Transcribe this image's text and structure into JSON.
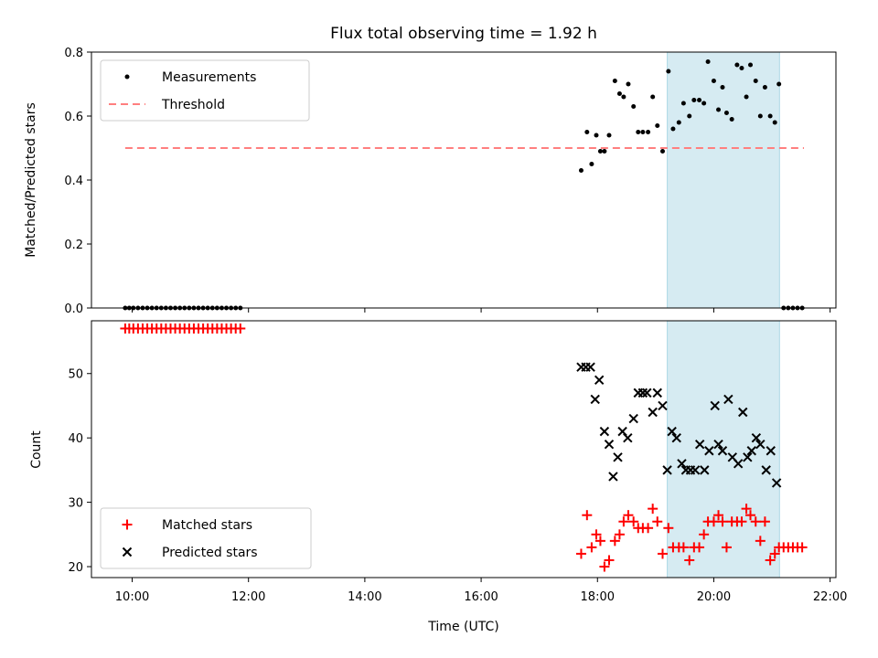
{
  "chart_data": {
    "type": "scatter",
    "title": "Flux total observing time = 1.92 h",
    "x_axis": {
      "label": "Time (UTC)",
      "range_hours": [
        9.3,
        22.1
      ],
      "ticks": [
        "10:00",
        "12:00",
        "14:00",
        "16:00",
        "18:00",
        "20:00",
        "22:00"
      ]
    },
    "shaded_interval": {
      "start_hour": 19.2,
      "end_hour": 21.13,
      "color": "#add8e6"
    },
    "panels": [
      {
        "ylabel": "Matched/Predicted stars",
        "ylim": [
          0,
          0.8
        ],
        "yticks": [
          "0.0",
          "0.2",
          "0.4",
          "0.6",
          "0.8"
        ],
        "legend": [
          "Measurements",
          "Threshold"
        ],
        "legend_location": "upper-left",
        "threshold": {
          "value": 0.5,
          "x_range": [
            9.88,
            21.55
          ],
          "color": "#ff7f7f"
        },
        "series": [
          {
            "name": "Measurements",
            "marker": "dot",
            "color": "#000000",
            "points": [
              [
                9.88,
                0
              ],
              [
                9.95,
                0
              ],
              [
                10.02,
                0
              ],
              [
                10.1,
                0
              ],
              [
                10.18,
                0
              ],
              [
                10.26,
                0
              ],
              [
                10.34,
                0
              ],
              [
                10.42,
                0
              ],
              [
                10.5,
                0
              ],
              [
                10.58,
                0
              ],
              [
                10.66,
                0
              ],
              [
                10.74,
                0
              ],
              [
                10.82,
                0
              ],
              [
                10.9,
                0
              ],
              [
                10.98,
                0
              ],
              [
                11.06,
                0
              ],
              [
                11.14,
                0
              ],
              [
                11.22,
                0
              ],
              [
                11.3,
                0
              ],
              [
                11.38,
                0
              ],
              [
                11.46,
                0
              ],
              [
                11.54,
                0
              ],
              [
                11.62,
                0
              ],
              [
                11.7,
                0
              ],
              [
                11.78,
                0
              ],
              [
                11.86,
                0
              ],
              [
                17.72,
                0.43
              ],
              [
                17.82,
                0.55
              ],
              [
                17.9,
                0.45
              ],
              [
                17.98,
                0.54
              ],
              [
                18.05,
                0.49
              ],
              [
                18.12,
                0.49
              ],
              [
                18.2,
                0.54
              ],
              [
                18.3,
                0.71
              ],
              [
                18.38,
                0.67
              ],
              [
                18.45,
                0.66
              ],
              [
                18.53,
                0.7
              ],
              [
                18.62,
                0.63
              ],
              [
                18.7,
                0.55
              ],
              [
                18.78,
                0.55
              ],
              [
                18.87,
                0.55
              ],
              [
                18.95,
                0.66
              ],
              [
                19.03,
                0.57
              ],
              [
                19.12,
                0.49
              ],
              [
                19.22,
                0.74
              ],
              [
                19.3,
                0.56
              ],
              [
                19.4,
                0.58
              ],
              [
                19.48,
                0.64
              ],
              [
                19.58,
                0.6
              ],
              [
                19.66,
                0.65
              ],
              [
                19.75,
                0.65
              ],
              [
                19.83,
                0.64
              ],
              [
                19.9,
                0.77
              ],
              [
                20.0,
                0.71
              ],
              [
                20.08,
                0.62
              ],
              [
                20.15,
                0.69
              ],
              [
                20.22,
                0.61
              ],
              [
                20.31,
                0.59
              ],
              [
                20.4,
                0.76
              ],
              [
                20.48,
                0.75
              ],
              [
                20.56,
                0.66
              ],
              [
                20.63,
                0.76
              ],
              [
                20.72,
                0.71
              ],
              [
                20.8,
                0.6
              ],
              [
                20.88,
                0.69
              ],
              [
                20.97,
                0.6
              ],
              [
                21.05,
                0.58
              ],
              [
                21.12,
                0.7
              ],
              [
                21.2,
                0
              ],
              [
                21.28,
                0
              ],
              [
                21.36,
                0
              ],
              [
                21.44,
                0
              ],
              [
                21.52,
                0
              ]
            ]
          }
        ]
      },
      {
        "ylabel": "Count",
        "ylim": [
          18.3,
          58.2
        ],
        "yticks": [
          "20",
          "30",
          "40",
          "50"
        ],
        "legend": [
          "Matched stars",
          "Predicted stars"
        ],
        "legend_location": "lower-left",
        "series": [
          {
            "name": "Matched stars",
            "marker": "plus",
            "color": "#ff0000",
            "points": [
              [
                9.88,
                57
              ],
              [
                9.95,
                57
              ],
              [
                10.02,
                57
              ],
              [
                10.1,
                57
              ],
              [
                10.18,
                57
              ],
              [
                10.26,
                57
              ],
              [
                10.34,
                57
              ],
              [
                10.42,
                57
              ],
              [
                10.5,
                57
              ],
              [
                10.58,
                57
              ],
              [
                10.66,
                57
              ],
              [
                10.74,
                57
              ],
              [
                10.82,
                57
              ],
              [
                10.9,
                57
              ],
              [
                10.98,
                57
              ],
              [
                11.06,
                57
              ],
              [
                11.14,
                57
              ],
              [
                11.22,
                57
              ],
              [
                11.3,
                57
              ],
              [
                11.38,
                57
              ],
              [
                11.46,
                57
              ],
              [
                11.54,
                57
              ],
              [
                11.62,
                57
              ],
              [
                11.7,
                57
              ],
              [
                11.78,
                57
              ],
              [
                11.86,
                57
              ],
              [
                17.72,
                22
              ],
              [
                17.82,
                28
              ],
              [
                17.9,
                23
              ],
              [
                17.98,
                25
              ],
              [
                18.05,
                24
              ],
              [
                18.12,
                20
              ],
              [
                18.2,
                21
              ],
              [
                18.3,
                24
              ],
              [
                18.38,
                25
              ],
              [
                18.45,
                27
              ],
              [
                18.53,
                28
              ],
              [
                18.62,
                27
              ],
              [
                18.7,
                26
              ],
              [
                18.78,
                26
              ],
              [
                18.87,
                26
              ],
              [
                18.95,
                29
              ],
              [
                19.03,
                27
              ],
              [
                19.12,
                22
              ],
              [
                19.22,
                26
              ],
              [
                19.3,
                23
              ],
              [
                19.4,
                23
              ],
              [
                19.48,
                23
              ],
              [
                19.58,
                21
              ],
              [
                19.66,
                23
              ],
              [
                19.75,
                23
              ],
              [
                19.83,
                25
              ],
              [
                19.9,
                27
              ],
              [
                20.0,
                27
              ],
              [
                20.08,
                28
              ],
              [
                20.15,
                27
              ],
              [
                20.22,
                23
              ],
              [
                20.31,
                27
              ],
              [
                20.4,
                27
              ],
              [
                20.48,
                27
              ],
              [
                20.56,
                29
              ],
              [
                20.63,
                28
              ],
              [
                20.72,
                27
              ],
              [
                20.8,
                24
              ],
              [
                20.88,
                27
              ],
              [
                20.97,
                21
              ],
              [
                21.05,
                22
              ],
              [
                21.12,
                23
              ],
              [
                21.2,
                23
              ],
              [
                21.28,
                23
              ],
              [
                21.36,
                23
              ],
              [
                21.44,
                23
              ],
              [
                21.52,
                23
              ]
            ]
          },
          {
            "name": "Predicted stars",
            "marker": "x",
            "color": "#000000",
            "points": [
              [
                17.72,
                51
              ],
              [
                17.8,
                51
              ],
              [
                17.88,
                51
              ],
              [
                17.96,
                46
              ],
              [
                18.03,
                49
              ],
              [
                18.12,
                41
              ],
              [
                18.2,
                39
              ],
              [
                18.27,
                34
              ],
              [
                18.35,
                37
              ],
              [
                18.43,
                41
              ],
              [
                18.52,
                40
              ],
              [
                18.62,
                43
              ],
              [
                18.7,
                47
              ],
              [
                18.78,
                47
              ],
              [
                18.85,
                47
              ],
              [
                18.95,
                44
              ],
              [
                19.03,
                47
              ],
              [
                19.12,
                45
              ],
              [
                19.2,
                35
              ],
              [
                19.28,
                41
              ],
              [
                19.36,
                40
              ],
              [
                19.45,
                36
              ],
              [
                19.52,
                35
              ],
              [
                19.6,
                35
              ],
              [
                19.68,
                35
              ],
              [
                19.76,
                39
              ],
              [
                19.84,
                35
              ],
              [
                19.92,
                38
              ],
              [
                20.02,
                45
              ],
              [
                20.08,
                39
              ],
              [
                20.15,
                38
              ],
              [
                20.25,
                46
              ],
              [
                20.32,
                37
              ],
              [
                20.42,
                36
              ],
              [
                20.5,
                44
              ],
              [
                20.58,
                37
              ],
              [
                20.65,
                38
              ],
              [
                20.73,
                40
              ],
              [
                20.8,
                39
              ],
              [
                20.9,
                35
              ],
              [
                20.98,
                38
              ],
              [
                21.08,
                33
              ]
            ]
          }
        ]
      }
    ]
  }
}
